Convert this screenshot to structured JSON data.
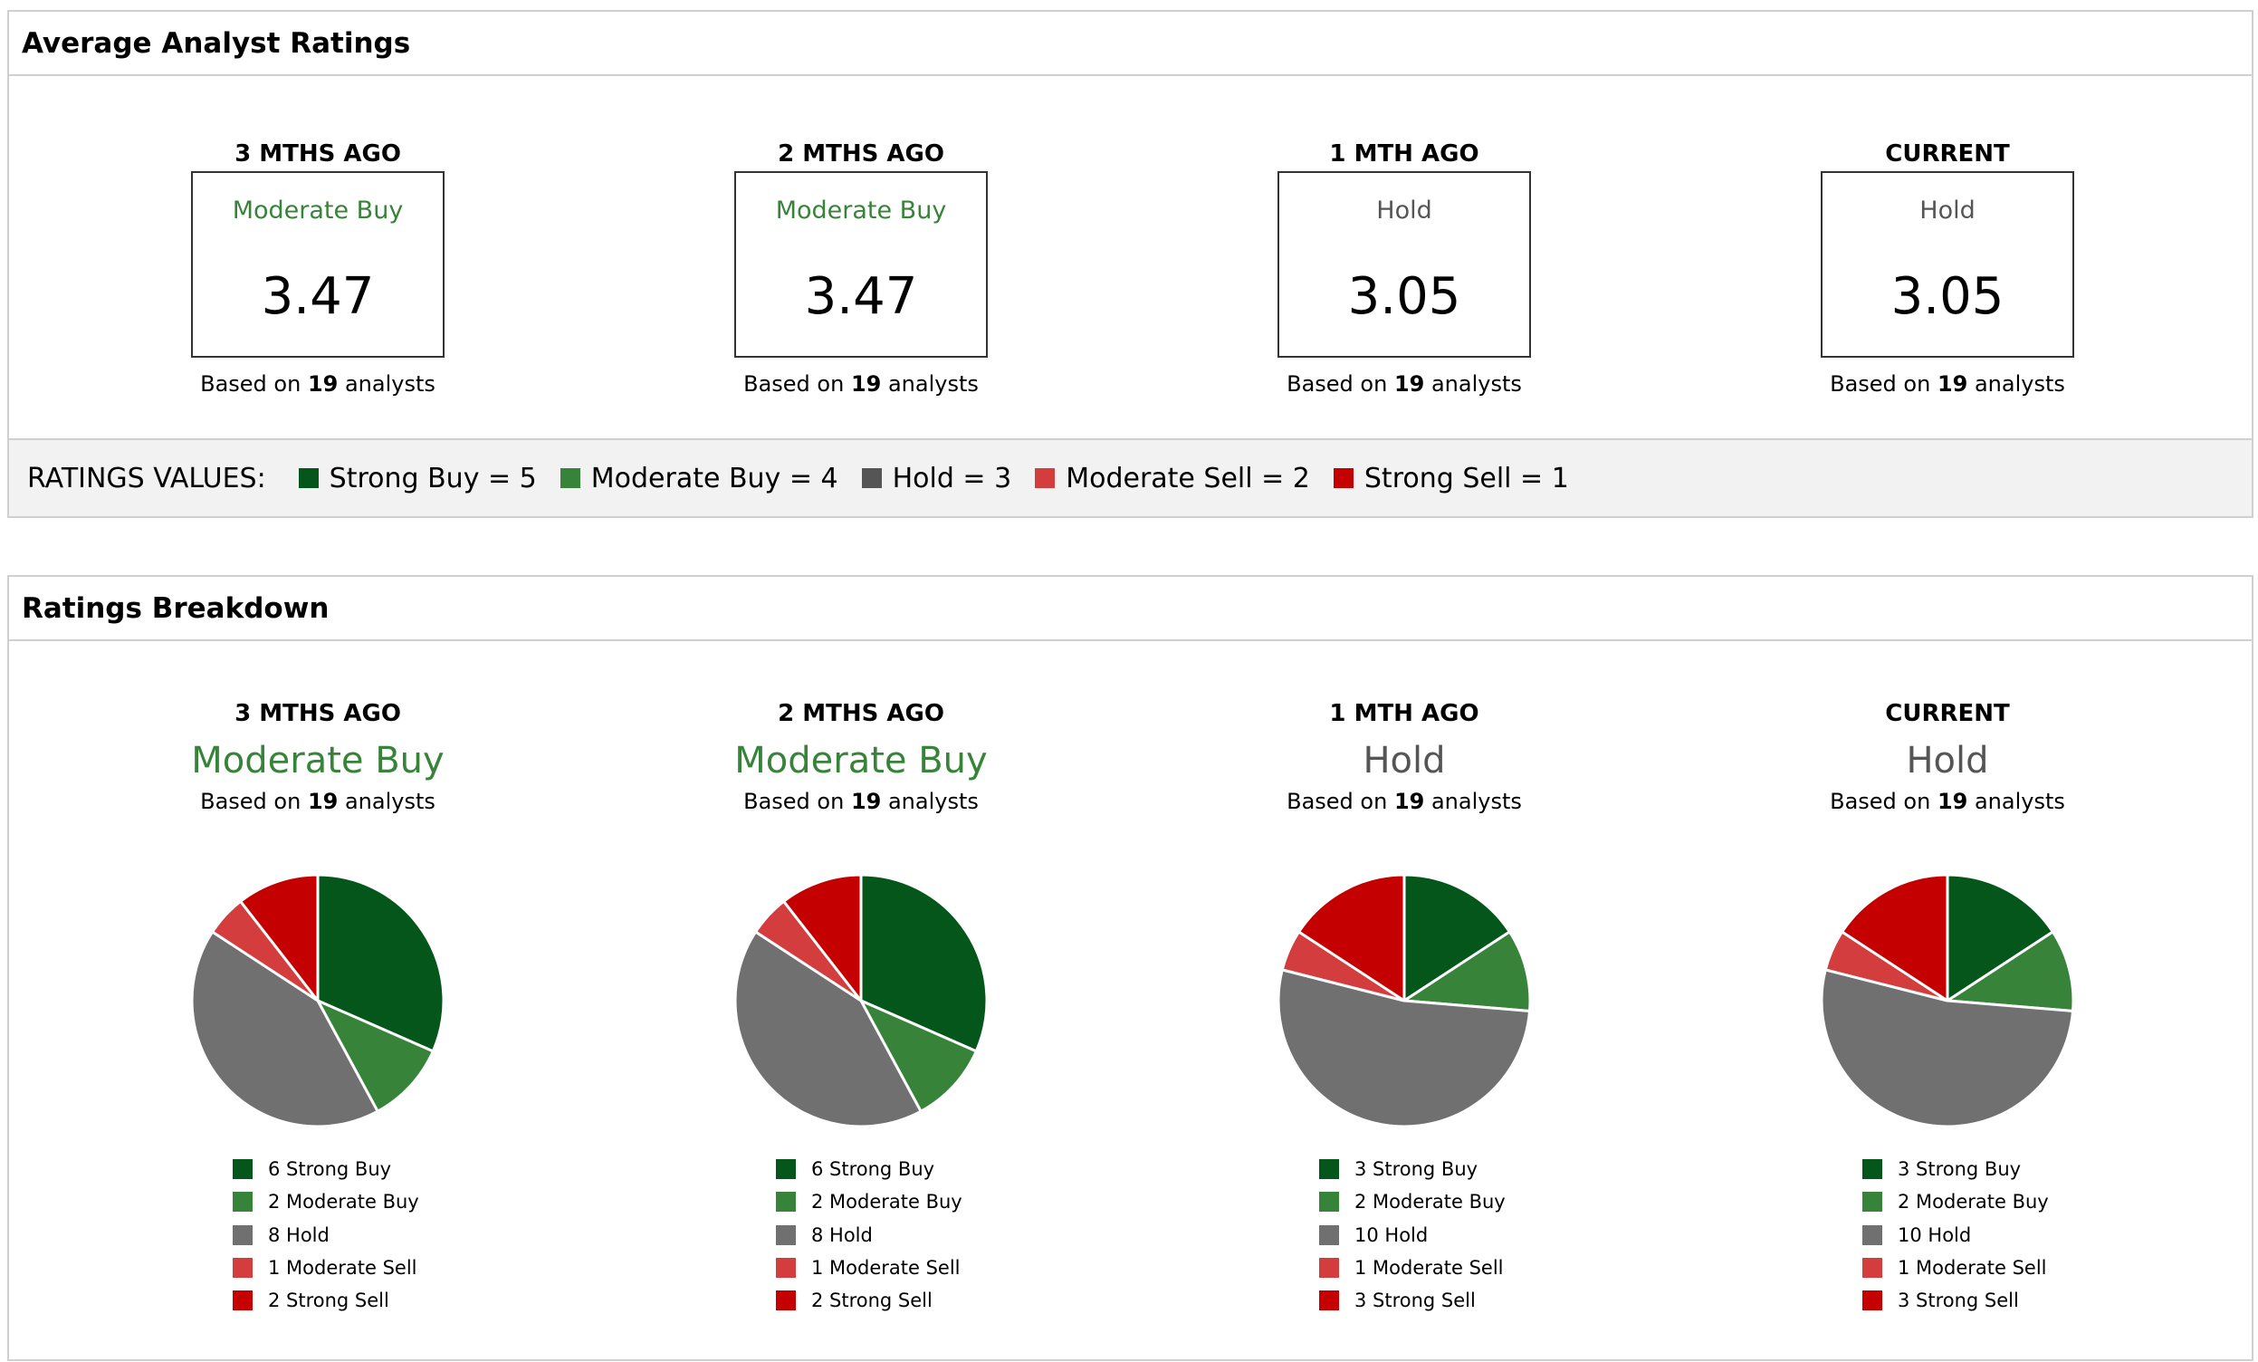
{
  "average": {
    "title": "Average Analyst Ratings",
    "columns": [
      {
        "period": "3 MTHS AGO",
        "rating": "Moderate Buy",
        "score": "3.47",
        "analysts": "19"
      },
      {
        "period": "2 MTHS AGO",
        "rating": "Moderate Buy",
        "score": "3.47",
        "analysts": "19"
      },
      {
        "period": "1 MTH AGO",
        "rating": "Hold",
        "score": "3.05",
        "analysts": "19"
      },
      {
        "period": "CURRENT",
        "rating": "Hold",
        "score": "3.05",
        "analysts": "19"
      }
    ],
    "based_prefix": "Based on",
    "based_suffix": "analysts",
    "ratings_values_label": "RATINGS VALUES:",
    "ratings_values": [
      {
        "label": "Strong Buy = 5",
        "color": "#05561a"
      },
      {
        "label": "Moderate Buy = 4",
        "color": "#38833a"
      },
      {
        "label": "Hold = 3",
        "color": "#555555"
      },
      {
        "label": "Moderate Sell = 2",
        "color": "#d43d3d"
      },
      {
        "label": "Strong Sell = 1",
        "color": "#c40000"
      }
    ]
  },
  "rating_colors": {
    "Moderate Buy": "#38833a",
    "Hold": "#555555"
  },
  "breakdown": {
    "title": "Ratings Breakdown",
    "categories": [
      "Strong Buy",
      "Moderate Buy",
      "Hold",
      "Moderate Sell",
      "Strong Sell"
    ],
    "colors": [
      "#05561a",
      "#38833a",
      "#707070",
      "#d43d3d",
      "#c40000"
    ],
    "columns": [
      {
        "period": "3 MTHS AGO",
        "rating": "Moderate Buy",
        "analysts": "19",
        "counts": [
          6,
          2,
          8,
          1,
          2
        ]
      },
      {
        "period": "2 MTHS AGO",
        "rating": "Moderate Buy",
        "analysts": "19",
        "counts": [
          6,
          2,
          8,
          1,
          2
        ]
      },
      {
        "period": "1 MTH AGO",
        "rating": "Hold",
        "analysts": "19",
        "counts": [
          3,
          2,
          10,
          1,
          3
        ]
      },
      {
        "period": "CURRENT",
        "rating": "Hold",
        "analysts": "19",
        "counts": [
          3,
          2,
          10,
          1,
          3
        ]
      }
    ]
  },
  "chart_data": {
    "type": "pie",
    "categories": [
      "Strong Buy",
      "Moderate Buy",
      "Hold",
      "Moderate Sell",
      "Strong Sell"
    ],
    "series": [
      {
        "name": "3 MTHS AGO",
        "values": [
          6,
          2,
          8,
          1,
          2
        ]
      },
      {
        "name": "2 MTHS AGO",
        "values": [
          6,
          2,
          8,
          1,
          2
        ]
      },
      {
        "name": "1 MTH AGO",
        "values": [
          3,
          2,
          10,
          1,
          3
        ]
      },
      {
        "name": "CURRENT",
        "values": [
          3,
          2,
          10,
          1,
          3
        ]
      }
    ],
    "legend": "below"
  }
}
